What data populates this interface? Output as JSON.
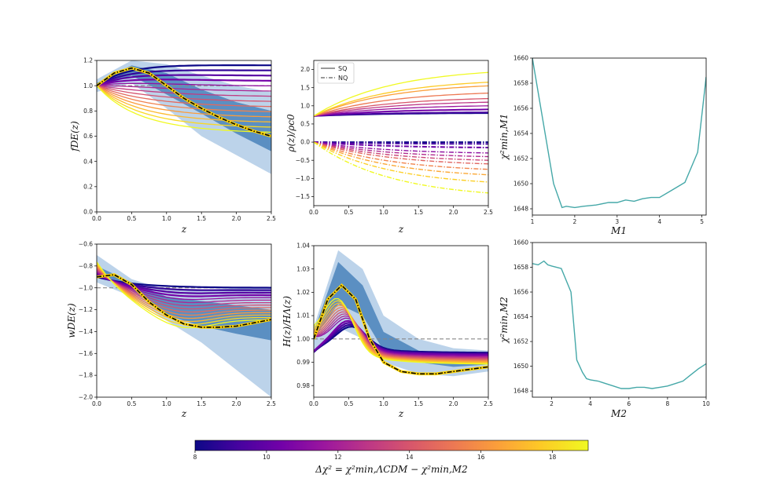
{
  "chart_data": [
    {
      "type": "line",
      "panel": "fDE",
      "xlabel": "z",
      "ylabel": "fDE(z)",
      "xlim": [
        0,
        2.5
      ],
      "ylim": [
        0,
        1.2
      ],
      "xticks": [
        "0.0",
        "0.5",
        "1.0",
        "1.5",
        "2.0",
        "2.5"
      ],
      "yticks": [
        "0.0",
        "0.2",
        "0.4",
        "0.6",
        "0.8",
        "1.0",
        "1.2"
      ],
      "reference_line": 1.0,
      "bands": {
        "outer": {
          "x": [
            0,
            0.5,
            1,
            1.5,
            2,
            2.5
          ],
          "lower": [
            0.95,
            1.02,
            0.82,
            0.6,
            0.45,
            0.3
          ],
          "upper": [
            1.05,
            1.2,
            1.17,
            1.08,
            1.0,
            0.95
          ]
        },
        "inner": {
          "x": [
            0,
            0.5,
            1,
            1.5,
            2,
            2.5
          ],
          "lower": [
            0.98,
            1.08,
            0.93,
            0.78,
            0.62,
            0.48
          ],
          "upper": [
            1.02,
            1.16,
            1.1,
            0.97,
            0.87,
            0.8
          ]
        }
      },
      "best_fit": {
        "x": [
          0,
          0.25,
          0.5,
          0.75,
          1,
          1.25,
          1.5,
          1.75,
          2,
          2.25,
          2.5
        ],
        "y": [
          1.0,
          1.1,
          1.14,
          1.1,
          1.0,
          0.9,
          0.82,
          0.75,
          0.69,
          0.64,
          0.6
        ]
      },
      "series_note": "Curves coloured by Δχ² (8 → 19) following the colourbar; SQ dark curves flatten near 1.1–1.16, bright curves bend down to 0.6–1.0."
    },
    {
      "type": "line",
      "panel": "rho",
      "xlabel": "z",
      "ylabel": "ρ(z)/ρc0",
      "xlim": [
        0,
        2.5
      ],
      "ylim": [
        -1.75,
        2.25
      ],
      "xticks": [
        "0.0",
        "0.5",
        "1.0",
        "1.5",
        "2.0",
        "2.5"
      ],
      "yticks": [
        "−1.5",
        "−1.0",
        "−0.5",
        "0.0",
        "0.5",
        "1.0",
        "1.5",
        "2.0"
      ],
      "legend": [
        {
          "label": "SQ",
          "style": "solid"
        },
        {
          "label": "NQ",
          "style": "dashdot"
        }
      ],
      "sq_start": 0.72,
      "sq_end_values": [
        0.8,
        0.82,
        0.9,
        1.0,
        1.1,
        1.2,
        1.35,
        1.55,
        1.65,
        1.92
      ],
      "nq_end_values": [
        0.0,
        -0.05,
        -0.15,
        -0.3,
        -0.4,
        -0.5,
        -0.6,
        -0.75,
        -0.9,
        -1.1,
        -1.4
      ]
    },
    {
      "type": "line",
      "panel": "chi2_M1",
      "xlabel": "M1",
      "ylabel": "χ²min,M1",
      "xlim": [
        1,
        5.1
      ],
      "ylim": [
        1647.5,
        1660
      ],
      "xticks": [
        "1",
        "2",
        "3",
        "4",
        "5"
      ],
      "yticks": [
        "1648",
        "1650",
        "1652",
        "1654",
        "1656",
        "1658",
        "1660"
      ],
      "x": [
        1.0,
        1.2,
        1.5,
        1.7,
        1.8,
        2.0,
        2.2,
        2.5,
        2.8,
        3.0,
        3.2,
        3.4,
        3.6,
        3.8,
        4.0,
        4.3,
        4.6,
        4.9,
        5.1
      ],
      "y": [
        1660,
        1656,
        1650,
        1648.1,
        1648.2,
        1648.1,
        1648.2,
        1648.3,
        1648.5,
        1648.5,
        1648.7,
        1648.6,
        1648.8,
        1648.9,
        1648.9,
        1649.5,
        1650.1,
        1652.5,
        1658.5
      ]
    },
    {
      "type": "line",
      "panel": "wDE",
      "xlabel": "z",
      "ylabel": "wDE(z)",
      "xlim": [
        0,
        2.5
      ],
      "ylim": [
        -2.0,
        -0.6
      ],
      "xticks": [
        "0.0",
        "0.5",
        "1.0",
        "1.5",
        "2.0",
        "2.5"
      ],
      "yticks": [
        "−2.0",
        "−1.8",
        "−1.6",
        "−1.4",
        "−1.2",
        "−1.0",
        "−0.8",
        "−0.6"
      ],
      "reference_line": -1.0,
      "bands": {
        "outer": {
          "x": [
            0,
            0.5,
            1,
            1.5,
            2,
            2.5
          ],
          "lower": [
            -0.95,
            -1.08,
            -1.3,
            -1.5,
            -1.75,
            -2.0
          ],
          "upper": [
            -0.7,
            -0.92,
            -1.02,
            -1.02,
            -1.0,
            -1.0
          ]
        },
        "inner": {
          "x": [
            0,
            0.5,
            1,
            1.5,
            2,
            2.5
          ],
          "lower": [
            -0.85,
            -1.02,
            -1.25,
            -1.35,
            -1.42,
            -1.48
          ],
          "upper": [
            -0.8,
            -0.95,
            -1.08,
            -1.12,
            -1.16,
            -1.2
          ]
        }
      },
      "best_fit": {
        "x": [
          0,
          0.25,
          0.5,
          0.75,
          1,
          1.25,
          1.5,
          1.75,
          2,
          2.25,
          2.5
        ],
        "y": [
          -0.9,
          -0.88,
          -0.97,
          -1.13,
          -1.25,
          -1.33,
          -1.36,
          -1.36,
          -1.35,
          -1.32,
          -1.29
        ]
      }
    },
    {
      "type": "line",
      "panel": "H",
      "xlabel": "z",
      "ylabel": "H(z)/HΛ(z)",
      "xlim": [
        0,
        2.5
      ],
      "ylim": [
        0.975,
        1.04
      ],
      "xticks": [
        "0.0",
        "0.5",
        "1.0",
        "1.5",
        "2.0",
        "2.5"
      ],
      "yticks": [
        "0.98",
        "0.99",
        "1.00",
        "1.01",
        "1.02",
        "1.03",
        "1.04"
      ],
      "reference_line": 1.0,
      "bands": {
        "outer": {
          "x": [
            0,
            0.35,
            0.7,
            1,
            1.5,
            2,
            2.5
          ],
          "lower": [
            0.995,
            1.005,
            1.0,
            0.99,
            0.985,
            0.984,
            0.986
          ],
          "upper": [
            1.005,
            1.038,
            1.03,
            1.01,
            1.0,
            0.996,
            0.995
          ]
        },
        "inner": {
          "x": [
            0,
            0.35,
            0.7,
            1,
            1.5,
            2,
            2.5
          ],
          "lower": [
            1.0,
            1.015,
            1.01,
            0.995,
            0.99,
            0.988,
            0.989
          ],
          "upper": [
            1.003,
            1.033,
            1.023,
            1.003,
            0.995,
            0.992,
            0.992
          ]
        }
      },
      "best_fit": {
        "x": [
          0,
          0.2,
          0.4,
          0.6,
          0.8,
          1.0,
          1.25,
          1.5,
          1.75,
          2.0,
          2.5
        ],
        "y": [
          1.0,
          1.017,
          1.023,
          1.017,
          1.0,
          0.99,
          0.986,
          0.985,
          0.985,
          0.986,
          0.988
        ]
      }
    },
    {
      "type": "line",
      "panel": "chi2_M2",
      "xlabel": "M2",
      "ylabel": "χ²min,M2",
      "xlim": [
        1,
        10
      ],
      "ylim": [
        1647.5,
        1660
      ],
      "xticks": [
        "2",
        "4",
        "6",
        "8",
        "10"
      ],
      "yticks": [
        "1648",
        "1650",
        "1652",
        "1654",
        "1656",
        "1658",
        "1660"
      ],
      "x": [
        1.0,
        1.3,
        1.6,
        1.8,
        2.0,
        2.5,
        3.0,
        3.3,
        3.6,
        3.8,
        4.0,
        4.4,
        4.8,
        5.2,
        5.6,
        6.0,
        6.4,
        6.8,
        7.2,
        7.6,
        8.0,
        8.4,
        8.8,
        9.2,
        9.6,
        10.0
      ],
      "y": [
        1658.3,
        1658.2,
        1658.5,
        1658.2,
        1658.1,
        1657.9,
        1656.0,
        1650.5,
        1649.5,
        1649.0,
        1648.9,
        1648.8,
        1648.6,
        1648.4,
        1648.2,
        1648.2,
        1648.3,
        1648.3,
        1648.2,
        1648.3,
        1648.4,
        1648.6,
        1648.8,
        1649.3,
        1649.8,
        1650.2
      ]
    }
  ],
  "colorbar": {
    "min": 8,
    "max": 19,
    "ticks": [
      "8",
      "10",
      "12",
      "14",
      "16",
      "18"
    ],
    "label": "Δχ² = χ²min,ΛCDM − χ²min,M2",
    "stops": [
      "#0d0887",
      "#46039f",
      "#7201a8",
      "#9c179e",
      "#bd3786",
      "#d8576b",
      "#ed7953",
      "#fb9f3a",
      "#fdca26",
      "#f0f921"
    ]
  },
  "style": {
    "band_outer": "#bcd3ea",
    "band_inner": "#5b8fc2",
    "chi2_line": "#45a8a8",
    "reference": "#888888",
    "best_fit": "#000000",
    "best_fit_outline": "#ffd400"
  }
}
